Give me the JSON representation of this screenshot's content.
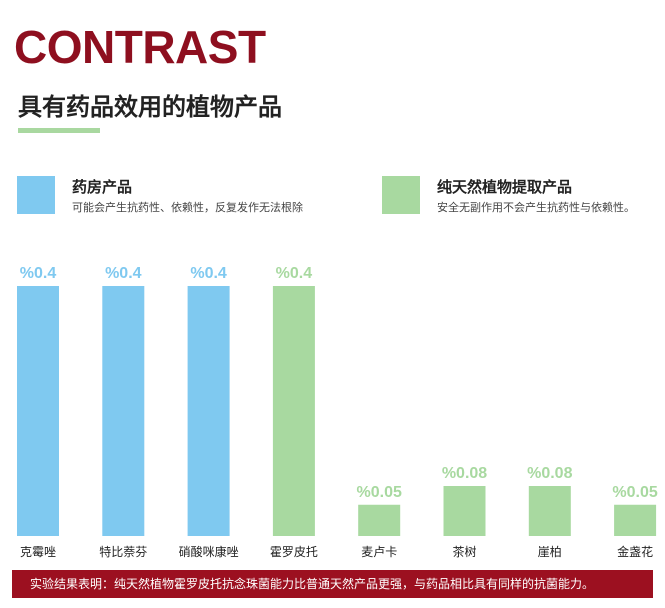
{
  "header": {
    "title": "CONTRAST",
    "subtitle": "具有药品效用的植物产品"
  },
  "legend": [
    {
      "name": "药房产品",
      "description": "可能会产生抗药性、依赖性，反复发作无法根除",
      "color": "#7fc9f0"
    },
    {
      "name": "纯天然植物提取产品",
      "description": "安全无副作用不会产生抗药性与依赖性。",
      "color": "#a8d9a0"
    }
  ],
  "chart_data": {
    "type": "bar",
    "categories": [
      "克霉唑",
      "特比萘芬",
      "硝酸咪康唑",
      "霍罗皮托",
      "麦卢卡",
      "茶树",
      "崖柏",
      "金盏花"
    ],
    "values": [
      0.4,
      0.4,
      0.4,
      0.4,
      0.05,
      0.08,
      0.08,
      0.05
    ],
    "data_labels": [
      "%0.4",
      "%0.4",
      "%0.4",
      "%0.4",
      "%0.05",
      "%0.08",
      "%0.08",
      "%0.05"
    ],
    "groups": [
      0,
      0,
      0,
      1,
      1,
      1,
      1,
      1
    ],
    "ylim": [
      0,
      0.4
    ],
    "grid": false,
    "legend_position": "top"
  },
  "footer": {
    "text": "实验结果表明：纯天然植物霍罗皮托抗念珠菌能力比普通天然产品更强，与药品相比具有同样的抗菌能力。"
  }
}
